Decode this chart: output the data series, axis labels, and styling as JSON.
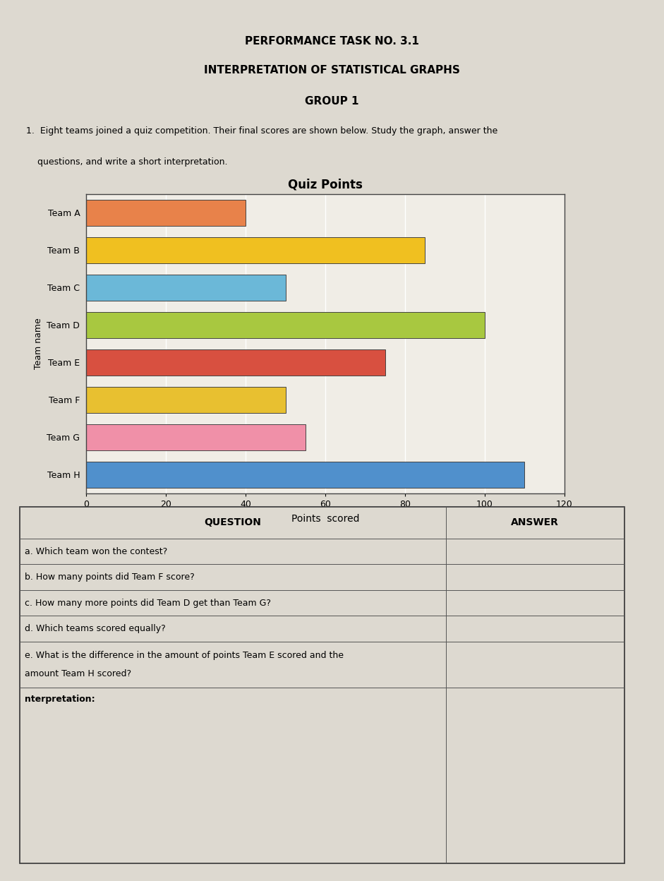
{
  "title_line1": "PERFORMANCE TASK NO. 3.1",
  "title_line2": "INTERPRETATION OF STATISTICAL GRAPHS",
  "title_line3": "GROUP 1",
  "intro_line1": "1.  Eight teams joined a quiz competition. Their final scores are shown below. Study the graph, answer the",
  "intro_line2": "    questions, and write a short interpretation.",
  "chart_title": "Quiz Points",
  "xlabel": "Points  scored",
  "ylabel": "Team name",
  "teams": [
    "Team A",
    "Team B",
    "Team C",
    "Team D",
    "Team E",
    "Team F",
    "Team G",
    "Team H"
  ],
  "scores": [
    40,
    85,
    50,
    100,
    75,
    50,
    55,
    110
  ],
  "bar_colors": [
    "#E8824A",
    "#F0C020",
    "#6BB8D8",
    "#A8C840",
    "#D85040",
    "#E8C030",
    "#F090A8",
    "#5090CC"
  ],
  "xlim": [
    0,
    120
  ],
  "xticks": [
    0,
    20,
    40,
    60,
    80,
    100,
    120
  ],
  "q_header": "QUESTION",
  "a_header": "ANSWER",
  "questions": [
    "a. Which team won the contest?",
    "b. How many points did Team F score?",
    "c. How many more points did Team D get than Team G?",
    "d. Which teams scored equally?",
    "e. What is the difference in the amount of points Team E scored and the\n   amount Team H scored?"
  ],
  "interp_label": "nterpretation:",
  "page_bg": "#DDD9D0",
  "paper_bg": "#F0EDE6",
  "table_bg": "#EEEAE4"
}
